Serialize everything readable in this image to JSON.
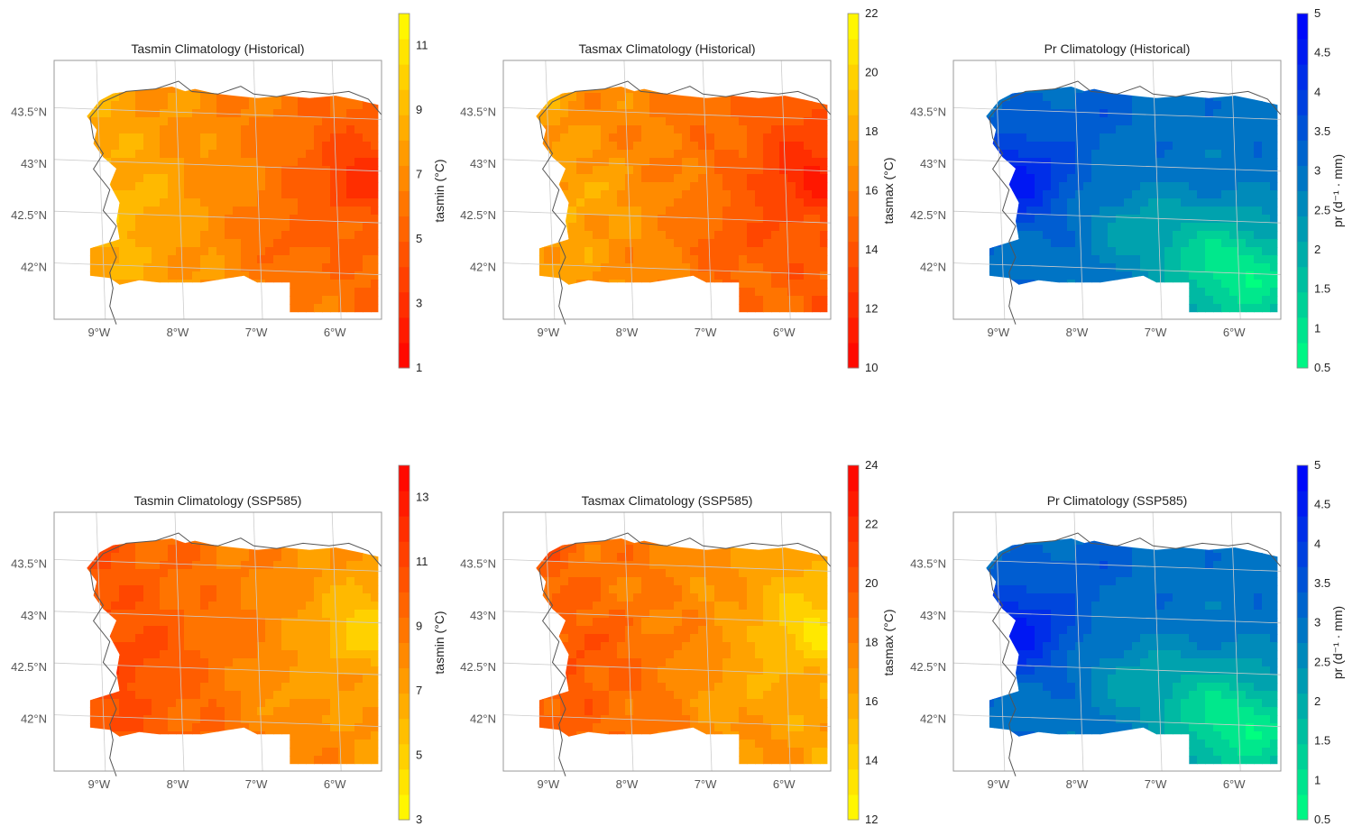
{
  "panels": [
    {
      "id": "tasmin-hist",
      "title": "Tasmin Climatology (Historical)",
      "colormap": "autumn",
      "cbar": {
        "label": "tasmin (°C)",
        "ticks": [
          "1",
          "3",
          "5",
          "7",
          "9",
          "11"
        ],
        "range": [
          1,
          12
        ],
        "invert_colors": false
      },
      "field": "tasmin"
    },
    {
      "id": "tasmax-hist",
      "title": "Tasmax Climatology (Historical)",
      "colormap": "autumn",
      "cbar": {
        "label": "tasmax (°C)",
        "ticks": [
          "10",
          "12",
          "14",
          "16",
          "18",
          "20",
          "22"
        ],
        "range": [
          10,
          22
        ],
        "invert_colors": false
      },
      "field": "tasmax"
    },
    {
      "id": "pr-hist",
      "title": "Pr Climatology (Historical)",
      "colormap": "winter",
      "cbar": {
        "label": "pr (d⁻¹ · mm)",
        "ticks": [
          "0.5",
          "1",
          "1.5",
          "2",
          "2.5",
          "3",
          "3.5",
          "4",
          "4.5",
          "5"
        ],
        "range": [
          0.5,
          5
        ],
        "invert_colors": false
      },
      "field": "pr"
    },
    {
      "id": "tasmin-ssp585",
      "title": "Tasmin Climatology (SSP585)",
      "colormap": "autumn_r",
      "cbar": {
        "label": "tasmin (°C)",
        "ticks": [
          "3",
          "5",
          "7",
          "9",
          "11",
          "13"
        ],
        "range": [
          3,
          14
        ],
        "invert_colors": true
      },
      "field": "tasmin"
    },
    {
      "id": "tasmax-ssp585",
      "title": "Tasmax Climatology (SSP585)",
      "colormap": "autumn_r",
      "cbar": {
        "label": "tasmax (°C)",
        "ticks": [
          "12",
          "14",
          "16",
          "18",
          "20",
          "22",
          "24"
        ],
        "range": [
          12,
          24
        ],
        "invert_colors": true
      },
      "field": "tasmax"
    },
    {
      "id": "pr-ssp585",
      "title": "Pr Climatology (SSP585)",
      "colormap": "winter",
      "cbar": {
        "label": "pr (d⁻¹ · mm)",
        "ticks": [
          "0.5",
          "1",
          "1.5",
          "2",
          "2.5",
          "3",
          "3.5",
          "4",
          "4.5",
          "5"
        ],
        "range": [
          0.5,
          5
        ],
        "invert_colors": false
      },
      "field": "pr"
    }
  ],
  "axes": {
    "lon_ticks": [
      "9°W",
      "8°W",
      "7°W",
      "6°W"
    ],
    "lat_ticks": [
      "43.5°N",
      "43°N",
      "42.5°N",
      "42°N"
    ]
  },
  "colors": {
    "autumn_low": "#ff0000",
    "autumn_high": "#ffff00",
    "winter_low": "#00ff80",
    "winter_high": "#0000ff",
    "grid": "#cccccc",
    "frame": "#999999",
    "coast": "#555555"
  }
}
